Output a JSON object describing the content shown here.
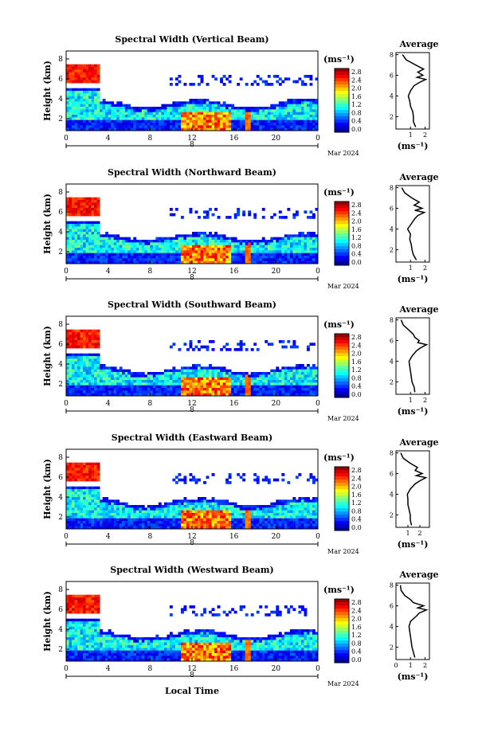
{
  "chart_data": [
    {
      "type": "heatmap",
      "title": "Spectral Width (Vertical Beam)",
      "ylabel": "Height (km)",
      "xlabel": "",
      "x_ticks": [
        "0",
        "4",
        "8",
        "12",
        "16",
        "20",
        "0"
      ],
      "y_ticks": [
        "2",
        "4",
        "6",
        "8"
      ],
      "date_marker": "8",
      "date_label": "Mar 2024",
      "colorbar": {
        "unit": "(ms⁻¹)",
        "ticks": [
          "2.8",
          "2.4",
          "2.0",
          "1.6",
          "1.2",
          "0.8",
          "0.4",
          "0.0"
        ],
        "range": [
          0,
          3.0
        ]
      },
      "average_profile": {
        "title": "Average",
        "xlabel": "(ms⁻¹)",
        "x_ticks": [
          "1",
          "2"
        ],
        "y_ticks": [
          "2",
          "4",
          "6",
          "8"
        ],
        "xlim": [
          0,
          2.3
        ],
        "ylim": [
          0.8,
          8.2
        ],
        "height_km": [
          1.0,
          1.5,
          2.0,
          2.5,
          3.0,
          3.5,
          4.0,
          4.5,
          5.0,
          5.3,
          5.6,
          5.8,
          6.0,
          6.3,
          6.6,
          7.0,
          7.5,
          8.0
        ],
        "width_ms": [
          1.35,
          1.2,
          1.2,
          1.15,
          1.0,
          0.95,
          0.85,
          1.0,
          1.25,
          1.6,
          2.05,
          1.45,
          1.85,
          1.5,
          1.9,
          1.35,
          0.7,
          0.45
        ]
      }
    },
    {
      "type": "heatmap",
      "title": "Spectral Width (Northward Beam)",
      "ylabel": "Height (km)",
      "xlabel": "",
      "x_ticks": [
        "0",
        "4",
        "8",
        "12",
        "16",
        "20",
        "0"
      ],
      "y_ticks": [
        "2",
        "4",
        "6",
        "8"
      ],
      "date_marker": "8",
      "date_label": "Mar 2024",
      "colorbar": {
        "unit": "(ms⁻¹)",
        "ticks": [
          "2.8",
          "2.4",
          "2.0",
          "1.6",
          "1.2",
          "0.8",
          "0.4",
          "0.0"
        ],
        "range": [
          0,
          3.0
        ]
      },
      "average_profile": {
        "title": "Average",
        "xlabel": "(ms⁻¹)",
        "x_ticks": [
          "1",
          "2"
        ],
        "y_ticks": [
          "2",
          "4",
          "6",
          "8"
        ],
        "xlim": [
          0,
          2.3
        ],
        "ylim": [
          0.8,
          8.2
        ],
        "height_km": [
          1.0,
          1.5,
          2.0,
          2.5,
          3.0,
          3.5,
          4.0,
          4.5,
          5.0,
          5.3,
          5.6,
          5.8,
          6.0,
          6.3,
          6.6,
          7.0,
          7.5,
          8.0
        ],
        "width_ms": [
          1.4,
          1.2,
          1.1,
          1.05,
          0.95,
          1.0,
          0.8,
          1.05,
          1.3,
          1.5,
          1.95,
          1.3,
          1.8,
          1.25,
          1.6,
          1.1,
          0.6,
          0.4
        ]
      }
    },
    {
      "type": "heatmap",
      "title": "Spectral Width (Southward Beam)",
      "ylabel": "Height (km)",
      "xlabel": "",
      "x_ticks": [
        "0",
        "4",
        "8",
        "12",
        "16",
        "20",
        "0"
      ],
      "y_ticks": [
        "2",
        "4",
        "6",
        "8"
      ],
      "date_marker": "8",
      "date_label": "Mar 2024",
      "colorbar": {
        "unit": "(ms⁻¹)",
        "ticks": [
          "2.8",
          "2.4",
          "2.0",
          "1.6",
          "1.2",
          "0.8",
          "0.4",
          "0.0"
        ],
        "range": [
          0,
          3.0
        ]
      },
      "average_profile": {
        "title": "Average",
        "xlabel": "(ms⁻¹)",
        "x_ticks": [
          "1",
          "2"
        ],
        "y_ticks": [
          "2",
          "4",
          "6",
          "8"
        ],
        "xlim": [
          0,
          2.3
        ],
        "ylim": [
          0.8,
          8.2
        ],
        "height_km": [
          1.0,
          1.5,
          2.0,
          2.5,
          3.0,
          3.5,
          4.0,
          4.5,
          5.0,
          5.3,
          5.6,
          5.8,
          6.0,
          6.3,
          6.6,
          7.0,
          7.5,
          8.0
        ],
        "width_ms": [
          1.3,
          1.25,
          1.1,
          1.05,
          1.0,
          0.95,
          0.9,
          1.1,
          1.4,
          1.7,
          2.1,
          1.5,
          1.6,
          1.3,
          1.2,
          0.9,
          0.5,
          0.35
        ]
      }
    },
    {
      "type": "heatmap",
      "title": "Spectral Width (Eastward Beam)",
      "ylabel": "Height (km)",
      "xlabel": "",
      "x_ticks": [
        "0",
        "4",
        "8",
        "12",
        "16",
        "20",
        "0"
      ],
      "y_ticks": [
        "2",
        "4",
        "6",
        "8"
      ],
      "date_marker": "8",
      "date_label": "Mar 2024",
      "colorbar": {
        "unit": "(ms⁻¹)",
        "ticks": [
          "2.8",
          "2.4",
          "2.0",
          "1.6",
          "1.2",
          "0.8",
          "0.4",
          "0.0"
        ],
        "range": [
          0,
          3.0
        ]
      },
      "average_profile": {
        "title": "Average",
        "xlabel": "(ms⁻¹)",
        "x_ticks": [
          "1",
          "2"
        ],
        "y_ticks": [
          "2",
          "4",
          "6",
          "8"
        ],
        "xlim": [
          0,
          2.8
        ],
        "ylim": [
          0.8,
          8.2
        ],
        "height_km": [
          1.0,
          1.5,
          2.0,
          2.5,
          3.0,
          3.5,
          4.0,
          4.5,
          5.0,
          5.3,
          5.6,
          5.8,
          6.0,
          6.3,
          6.6,
          7.0,
          7.5,
          8.0
        ],
        "width_ms": [
          1.3,
          1.2,
          1.2,
          1.1,
          1.0,
          1.0,
          0.95,
          1.2,
          1.6,
          2.0,
          2.5,
          1.7,
          2.2,
          1.6,
          1.8,
          1.2,
          0.6,
          0.4
        ]
      }
    },
    {
      "type": "heatmap",
      "title": "Spectral Width (Westward Beam)",
      "ylabel": "Height (km)",
      "xlabel": "Local Time",
      "x_ticks": [
        "0",
        "4",
        "8",
        "12",
        "16",
        "20",
        "0"
      ],
      "y_ticks": [
        "2",
        "4",
        "6",
        "8"
      ],
      "date_marker": "8",
      "date_label": "Mar 2024",
      "colorbar": {
        "unit": "(ms⁻¹)",
        "ticks": [
          "2.8",
          "2.4",
          "2.0",
          "1.6",
          "1.2",
          "0.8",
          "0.4",
          "0.0"
        ],
        "range": [
          0,
          3.0
        ]
      },
      "average_profile": {
        "title": "Average",
        "xlabel": "(ms⁻¹)",
        "x_ticks": [
          "0",
          "1",
          "2"
        ],
        "y_ticks": [
          "2",
          "4",
          "6",
          "8"
        ],
        "xlim": [
          0,
          2.3
        ],
        "ylim": [
          0.8,
          8.2
        ],
        "height_km": [
          1.0,
          1.5,
          2.0,
          2.5,
          3.0,
          3.5,
          4.0,
          4.5,
          5.0,
          5.3,
          5.6,
          5.8,
          6.0,
          6.3,
          6.6,
          7.0,
          7.5,
          8.0
        ],
        "width_ms": [
          1.3,
          1.2,
          1.1,
          1.05,
          1.0,
          0.95,
          0.9,
          1.0,
          1.4,
          1.6,
          2.1,
          1.5,
          1.9,
          1.2,
          1.0,
          0.6,
          0.35,
          0.3
        ]
      }
    }
  ]
}
